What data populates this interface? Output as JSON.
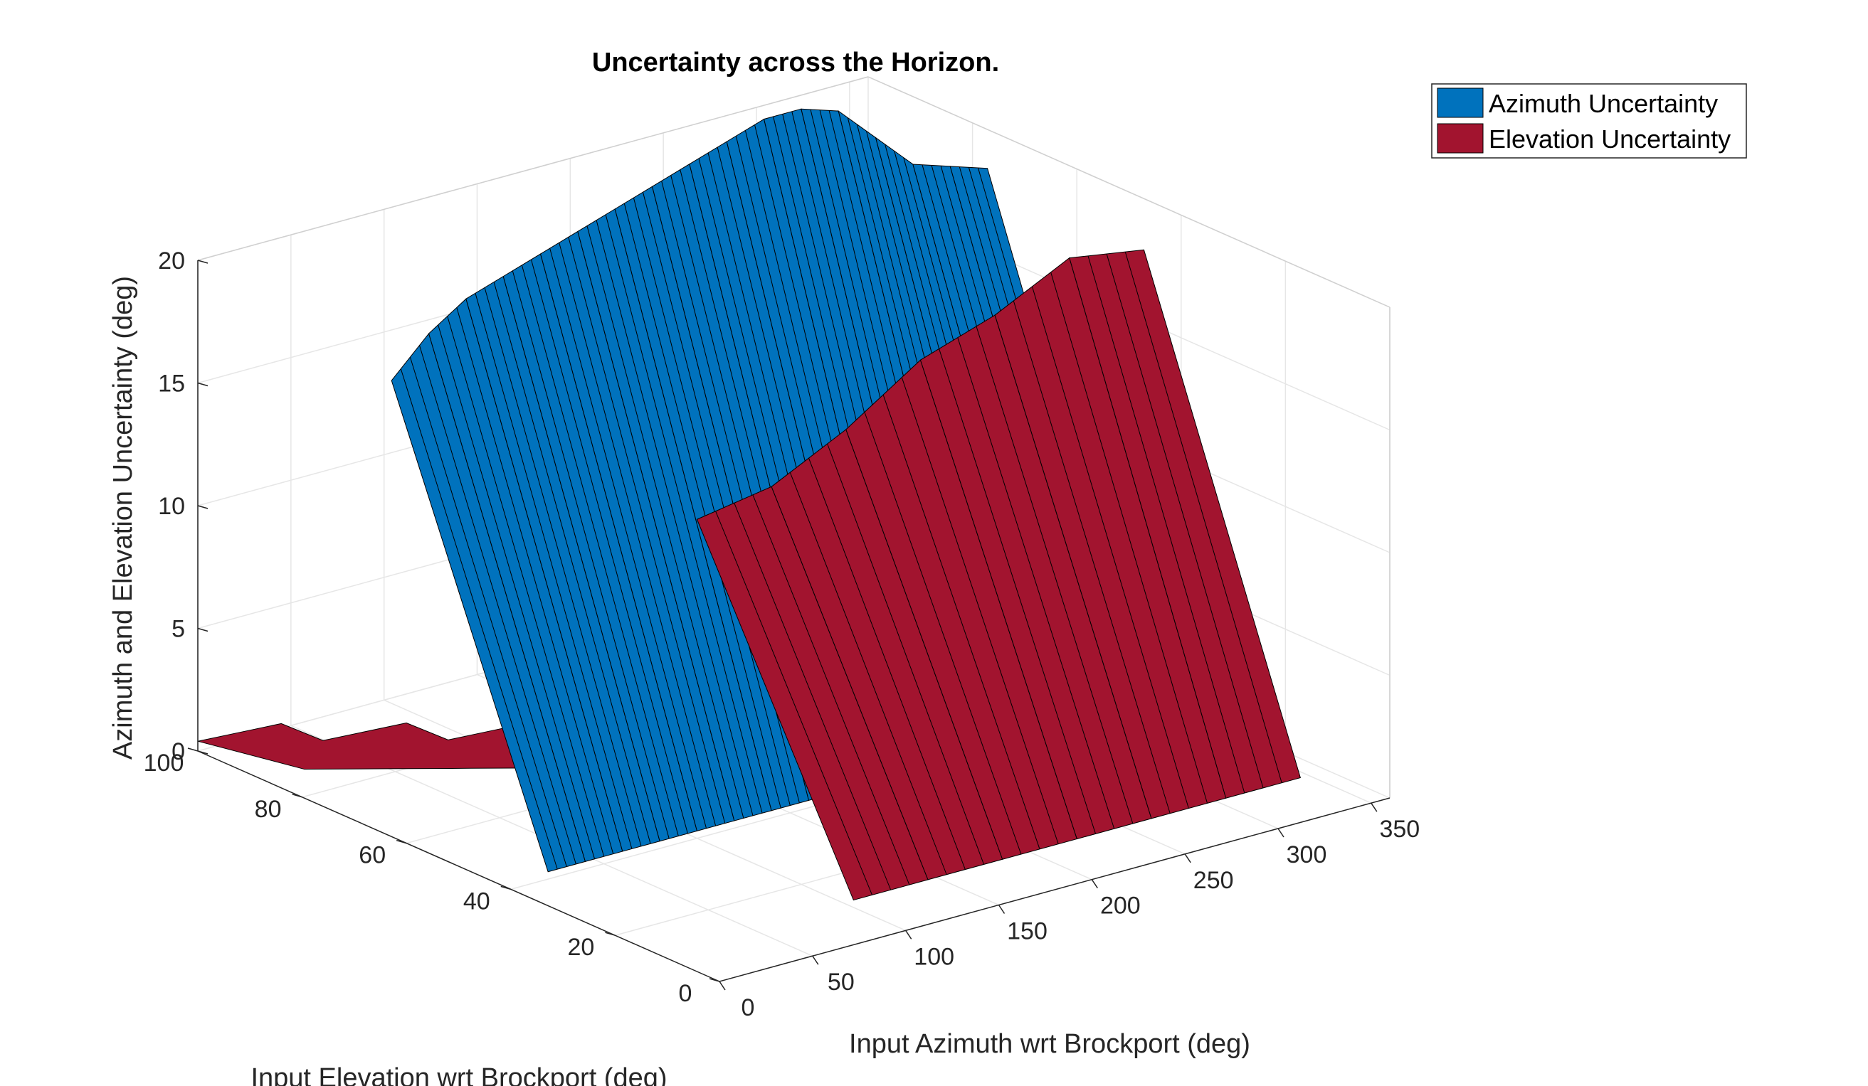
{
  "chart_data": {
    "type": "surface",
    "title": "Uncertainty across the Horizon.",
    "xlabel": "Input Azimuth wrt Brockport (deg)",
    "ylabel": "Input Elevation wrt Brockport (deg)",
    "zlabel": "Azimuth and Elevation Uncertainty (deg)",
    "xlim": [
      0,
      360
    ],
    "ylim": [
      0,
      100
    ],
    "zlim": [
      0,
      20
    ],
    "x_ticks": [
      "0",
      "50",
      "100",
      "150",
      "200",
      "250",
      "300",
      "350"
    ],
    "y_ticks": [
      "0",
      "20",
      "40",
      "60",
      "80",
      "100"
    ],
    "z_ticks": [
      "0",
      "5",
      "10",
      "15",
      "20"
    ],
    "x_tick_values": [
      0,
      50,
      100,
      150,
      200,
      250,
      300,
      350
    ],
    "y_tick_values": [
      0,
      20,
      40,
      60,
      80,
      100
    ],
    "z_tick_values": [
      0,
      5,
      10,
      15,
      20
    ],
    "grid": true,
    "legend_position": "top-right",
    "series": [
      {
        "name": "Azimuth Uncertainty",
        "color": "#0072BD",
        "ridge_azimuth": [
          20,
          40,
          60,
          80,
          100,
          120,
          140,
          160,
          180,
          200,
          220,
          240,
          260,
          280,
          300,
          320,
          340
        ],
        "ridge_elevation": [
          70,
          70,
          70,
          70,
          70,
          70,
          70,
          70,
          70,
          70,
          70,
          70,
          70,
          70,
          70,
          70,
          70
        ],
        "ridge_height": [
          17.5,
          19,
          20,
          20.5,
          21,
          21.5,
          22,
          22.5,
          23,
          23.5,
          24,
          24,
          23.5,
          22,
          20.5,
          20,
          19.5
        ]
      },
      {
        "name": "Elevation Uncertainty",
        "color": "#A2142F",
        "ridge_azimuth": [
          100,
          140,
          180,
          220,
          260,
          300,
          340
        ],
        "ridge_elevation": [
          40,
          40,
          40,
          40,
          40,
          40,
          40
        ],
        "ridge_height": [
          13,
          13.5,
          15,
          17,
          18,
          19.5,
          19
        ]
      }
    ]
  }
}
